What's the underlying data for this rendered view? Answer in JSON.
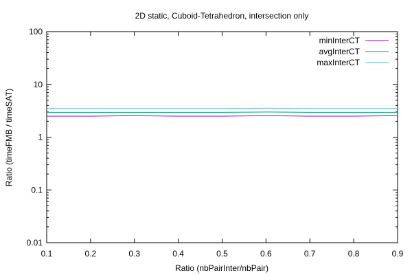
{
  "chart_data": {
    "type": "line",
    "title": "2D static, Cuboid-Tetrahedron, intersection only",
    "xlabel": "Ratio (nbPairInter/nbPair)",
    "ylabel": "Ratio (timeFMB / timeSAT)",
    "xlim": [
      0.1,
      0.9
    ],
    "ylim": [
      0.01,
      100
    ],
    "yscale": "log",
    "grid": false,
    "legend_position": "top-right",
    "xticks": [
      "0.1",
      "0.2",
      "0.3",
      "0.4",
      "0.5",
      "0.6",
      "0.7",
      "0.8",
      "0.9"
    ],
    "yticks": [
      "0.01",
      "0.1",
      "1",
      "10",
      "100"
    ],
    "x": [
      0.1,
      0.2,
      0.3,
      0.4,
      0.5,
      0.6,
      0.7,
      0.8,
      0.9
    ],
    "series": [
      {
        "name": "minInterCT",
        "color": "#9400d3",
        "values": [
          2.5,
          2.5,
          2.55,
          2.5,
          2.5,
          2.55,
          2.5,
          2.5,
          2.55
        ]
      },
      {
        "name": "avgInterCT",
        "color": "#009e73",
        "values": [
          2.95,
          2.95,
          2.95,
          2.95,
          2.95,
          3.0,
          2.95,
          2.95,
          2.95
        ]
      },
      {
        "name": "maxInterCT",
        "color": "#56b4e9",
        "values": [
          3.5,
          3.5,
          3.5,
          3.5,
          3.5,
          3.55,
          3.5,
          3.5,
          3.5
        ]
      }
    ]
  }
}
